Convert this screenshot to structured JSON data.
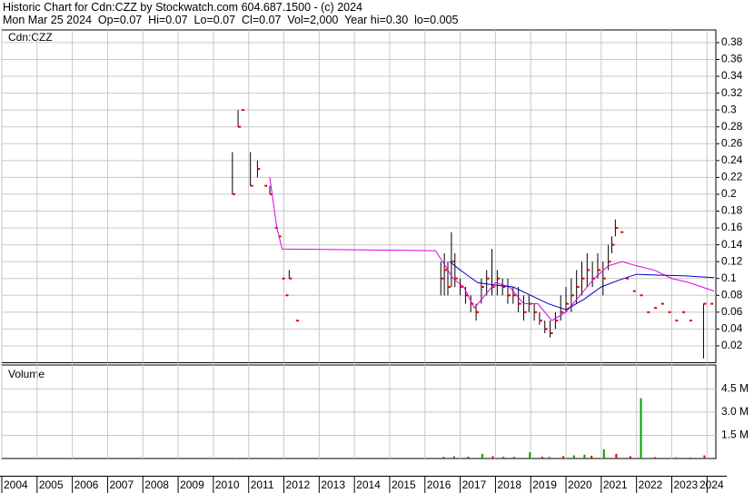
{
  "header": {
    "title": "Historic Chart for Cdn:CZZ by Stockwatch.com 604.687.1500 - (c) 2024",
    "quote": "Mon Mar 25 2024  Op=0.07  Hi=0.07  Lo=0.07  Cl=0.07  Vol=2,000  Year hi=0.30  lo=0.005"
  },
  "chart_data": [
    {
      "type": "stock",
      "label": "Cdn:CZZ",
      "grid": true,
      "xlim": [
        2004,
        2024.25
      ],
      "xticks": [
        2004,
        2005,
        2006,
        2007,
        2008,
        2009,
        2010,
        2011,
        2012,
        2013,
        2014,
        2015,
        2016,
        2017,
        2018,
        2019,
        2020,
        2021,
        2022,
        2023,
        2024
      ],
      "ylim": [
        0,
        0.395
      ],
      "yticks": [
        0.02,
        0.04,
        0.06,
        0.08,
        0.1,
        0.12,
        0.14,
        0.16,
        0.18,
        0.2,
        0.22,
        0.24,
        0.26,
        0.28,
        0.3,
        0.32,
        0.34,
        0.36,
        0.38
      ],
      "series": [
        {
          "style": "hilo",
          "color": "#e00000",
          "range_color": "#000000",
          "x": [
            2010.54,
            2010.7,
            2010.8,
            2011.05,
            2011.25,
            2011.45,
            2011.6,
            2011.75,
            2011.85,
            2011.95,
            2012.05,
            2012.15,
            2012.35,
            2016.45,
            2016.55,
            2016.65,
            2016.75,
            2016.85,
            2017.0,
            2017.15,
            2017.3,
            2017.45,
            2017.6,
            2017.75,
            2017.9,
            2018.05,
            2018.2,
            2018.35,
            2018.5,
            2018.65,
            2018.8,
            2018.95,
            2019.1,
            2019.25,
            2019.4,
            2019.55,
            2019.7,
            2019.85,
            2020.0,
            2020.15,
            2020.3,
            2020.45,
            2020.6,
            2020.75,
            2020.9,
            2021.05,
            2021.2,
            2021.3,
            2021.4,
            2021.55,
            2021.7,
            2021.9,
            2022.1,
            2022.3,
            2022.5,
            2022.7,
            2022.9,
            2023.1,
            2023.3,
            2023.5,
            2023.9,
            2024.1
          ],
          "values": [
            0.2,
            0.28,
            0.3,
            0.21,
            0.23,
            0.21,
            0.2,
            0.16,
            0.15,
            0.1,
            0.08,
            0.1,
            0.05,
            0.1,
            0.11,
            0.09,
            0.12,
            0.1,
            0.09,
            0.08,
            0.07,
            0.06,
            0.09,
            0.1,
            0.09,
            0.1,
            0.09,
            0.08,
            0.08,
            0.07,
            0.06,
            0.07,
            0.06,
            0.05,
            0.04,
            0.035,
            0.05,
            0.06,
            0.07,
            0.08,
            0.09,
            0.1,
            0.11,
            0.1,
            0.11,
            0.1,
            0.12,
            0.14,
            0.16,
            0.155,
            0.1,
            0.085,
            0.08,
            0.06,
            0.065,
            0.07,
            0.06,
            0.05,
            0.06,
            0.05,
            0.07,
            0.07
          ],
          "high": [
            0.25,
            0.3,
            null,
            0.25,
            0.24,
            null,
            0.21,
            null,
            null,
            null,
            null,
            0.11,
            null,
            0.12,
            0.13,
            0.12,
            0.155,
            0.13,
            0.1,
            0.09,
            0.08,
            0.07,
            0.1,
            0.11,
            0.135,
            0.11,
            0.1,
            0.1,
            0.09,
            0.09,
            0.08,
            0.08,
            0.07,
            0.06,
            0.05,
            0.05,
            0.06,
            0.08,
            0.09,
            0.1,
            0.11,
            0.12,
            0.13,
            0.12,
            0.13,
            0.12,
            0.14,
            0.15,
            0.17,
            null,
            null,
            null,
            null,
            null,
            null,
            null,
            null,
            null,
            null,
            null,
            0.07,
            null
          ],
          "low": [
            0.2,
            0.28,
            null,
            0.21,
            0.22,
            null,
            0.2,
            null,
            null,
            null,
            null,
            0.1,
            null,
            0.08,
            0.08,
            0.08,
            0.09,
            0.09,
            0.08,
            0.07,
            0.06,
            0.05,
            0.07,
            0.08,
            0.08,
            0.08,
            0.08,
            0.07,
            0.07,
            0.06,
            0.05,
            0.06,
            0.05,
            0.045,
            0.035,
            0.03,
            0.04,
            0.05,
            0.06,
            0.06,
            0.07,
            0.08,
            0.09,
            0.09,
            0.1,
            0.08,
            0.11,
            0.13,
            0.15,
            null,
            null,
            null,
            null,
            null,
            null,
            null,
            null,
            null,
            null,
            null,
            0.005,
            null
          ]
        },
        {
          "style": "line",
          "color": "#e000e0",
          "x": [
            2011.6,
            2011.8,
            2011.95,
            2016.3,
            2016.5,
            2016.8,
            2017.1,
            2017.4,
            2017.7,
            2018.0,
            2018.4,
            2018.8,
            2019.2,
            2019.6,
            2020.0,
            2020.4,
            2020.8,
            2021.2,
            2021.6,
            2022.0,
            2022.5,
            2023.0,
            2023.5,
            2024.2
          ],
          "values": [
            0.22,
            0.16,
            0.135,
            0.133,
            0.12,
            0.1,
            0.09,
            0.065,
            0.08,
            0.095,
            0.09,
            0.07,
            0.07,
            0.05,
            0.06,
            0.08,
            0.1,
            0.115,
            0.12,
            0.115,
            0.11,
            0.1,
            0.095,
            0.085
          ]
        },
        {
          "style": "line",
          "color": "#0000c0",
          "x": [
            2016.7,
            2017.0,
            2017.5,
            2018.0,
            2018.5,
            2019.0,
            2019.5,
            2020.0,
            2020.5,
            2021.0,
            2021.5,
            2022.0,
            2022.6,
            2023.4,
            2024.2
          ],
          "values": [
            0.12,
            0.11,
            0.095,
            0.092,
            0.09,
            0.08,
            0.07,
            0.063,
            0.075,
            0.09,
            0.098,
            0.105,
            0.104,
            0.103,
            0.101
          ]
        }
      ]
    },
    {
      "type": "bar",
      "label": "Volume",
      "grid": true,
      "ylim": [
        0,
        6050000
      ],
      "yticks": [
        {
          "value": 1500000,
          "label": "1.5 M"
        },
        {
          "value": 3000000,
          "label": "3.0 M"
        },
        {
          "value": 4500000,
          "label": "4.5 M"
        }
      ],
      "series": [
        {
          "color": "#00a000",
          "x": [
            2016.8,
            2017.6,
            2018.2,
            2018.95,
            2019.5,
            2020.2,
            2020.5,
            2021.05,
            2022.1,
            2023.1
          ],
          "values": [
            150000,
            300000,
            120000,
            400000,
            100000,
            200000,
            250000,
            600000,
            3900000,
            80000
          ]
        },
        {
          "color": "#e00000",
          "x": [
            2010.6,
            2011.2,
            2011.8,
            2016.5,
            2017.2,
            2017.9,
            2018.5,
            2019.3,
            2019.9,
            2020.7,
            2021.4,
            2021.8,
            2022.5,
            2023.5,
            2023.9
          ],
          "values": [
            30000,
            40000,
            30000,
            100000,
            120000,
            150000,
            100000,
            120000,
            150000,
            180000,
            300000,
            150000,
            80000,
            60000,
            200000
          ]
        }
      ]
    }
  ]
}
